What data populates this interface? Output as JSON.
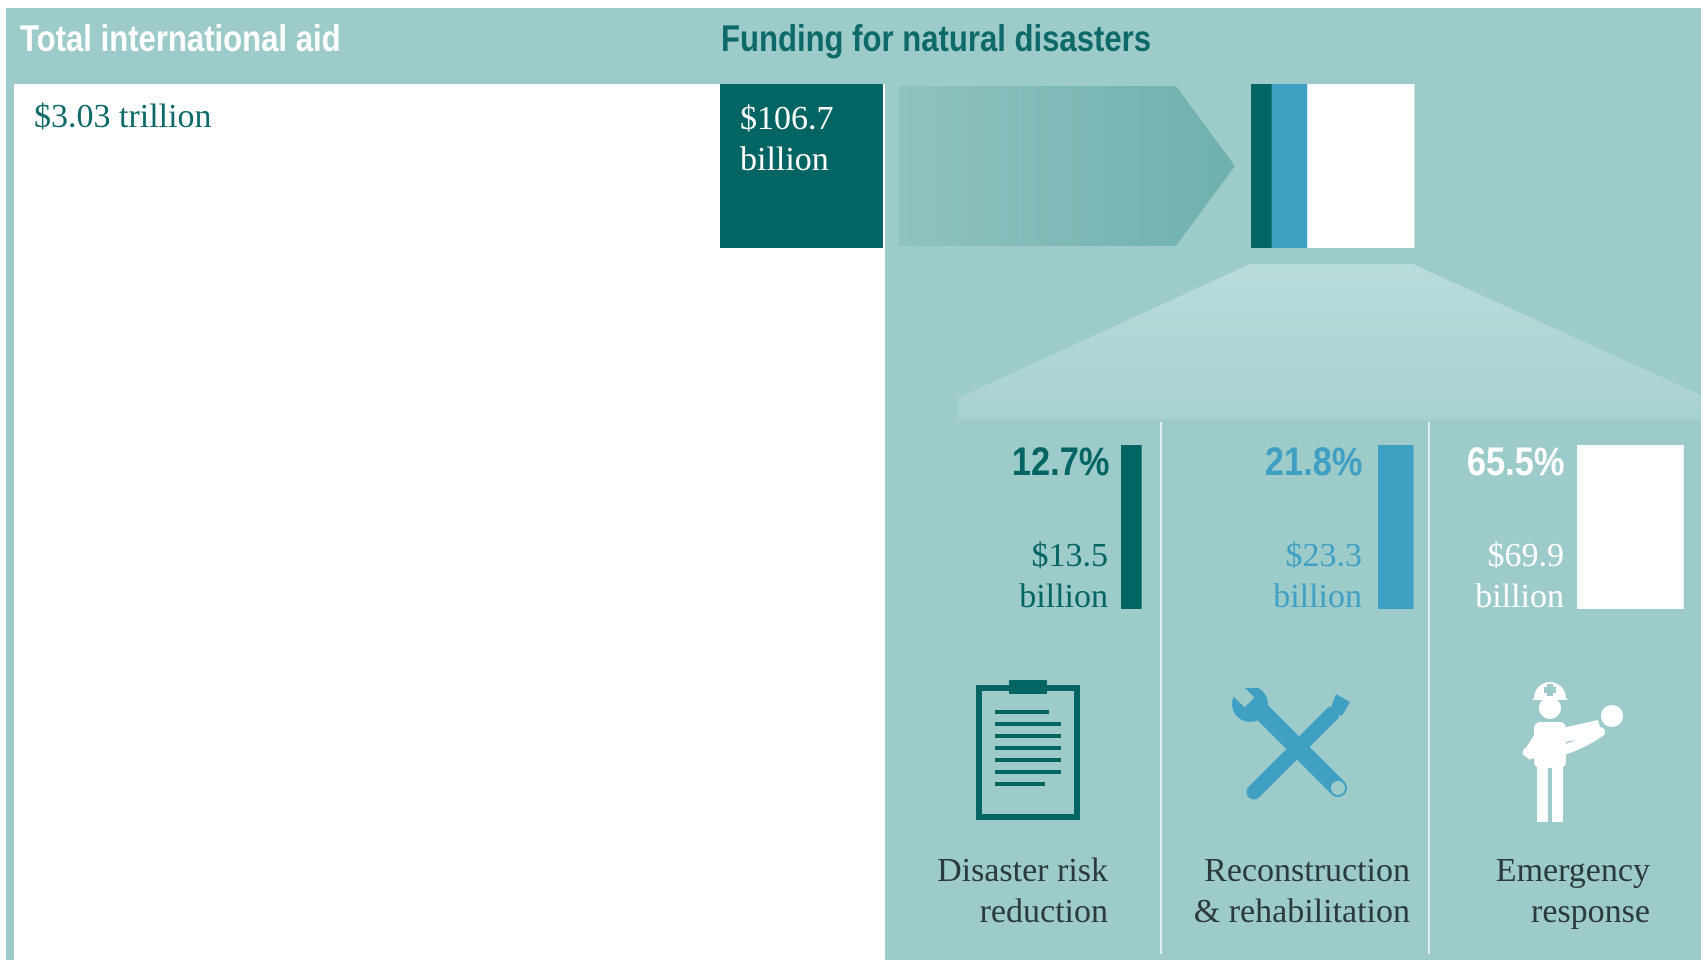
{
  "header": {
    "left_title": "Total international aid",
    "right_title": "Funding for natural disasters"
  },
  "total": {
    "value": "$3.03 trillion"
  },
  "natural_disasters": {
    "value_line1": "$106.7",
    "value_line2": "billion"
  },
  "colors": {
    "background": "#9dcbc9",
    "dark_teal": "#036563",
    "blue": "#3fa0c3",
    "white": "#ffffff",
    "heading_teal": "#0e6a69"
  },
  "chart_data": {
    "type": "bar",
    "total_aid": {
      "label": "$3.03 trillion",
      "value_trillion_usd": 3.03
    },
    "natural_disasters": {
      "label": "$106.7 billion",
      "value_billion_usd": 106.7
    },
    "categories": [
      "Disaster risk reduction",
      "Reconstruction & rehabilitation",
      "Emergency response"
    ],
    "percent": [
      12.7,
      21.8,
      65.5
    ],
    "values_billion_usd": [
      13.5,
      23.3,
      69.9
    ],
    "breakdown": [
      {
        "pct": "12.7%",
        "amount_line1": "$13.5",
        "amount_line2": "billion",
        "label_line1": "Disaster risk",
        "label_line2": "reduction",
        "icon": "clipboard-icon"
      },
      {
        "pct": "21.8%",
        "amount_line1": "$23.3",
        "amount_line2": "billion",
        "label_line1": "Reconstruction",
        "label_line2": "& rehabilitation",
        "icon": "tools-icon"
      },
      {
        "pct": "65.5%",
        "amount_line1": "$69.9",
        "amount_line2": "billion",
        "label_line1": "Emergency",
        "label_line2": "response",
        "icon": "rescuer-icon"
      }
    ]
  }
}
